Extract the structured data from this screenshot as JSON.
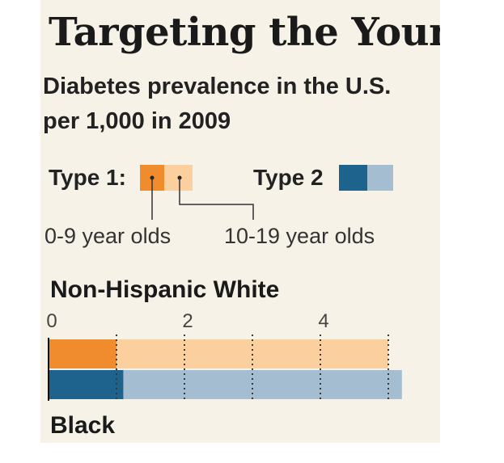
{
  "title": "Targeting the Youn",
  "subtitle_line1": "Diabetes prevalence in the U.S.",
  "subtitle_line2": "per 1,000 in 2009",
  "legend": {
    "type1_label": "Type 1:",
    "type2_label": "Type 2",
    "age_young": "0-9 year olds",
    "age_older": "10-19 year olds"
  },
  "colors": {
    "type1_young": "#f08c2e",
    "type1_older": "#fbcf9e",
    "type2_young": "#1e628e",
    "type2_older": "#a5bdd0",
    "background": "#f7f2e7"
  },
  "chart_data": {
    "type": "bar",
    "orientation": "horizontal",
    "stacked": false,
    "xlim": [
      0,
      5
    ],
    "ticks": [
      0,
      2,
      4
    ],
    "gridlines": [
      1,
      2,
      3,
      4,
      5
    ],
    "groups": [
      {
        "name": "Non-Hispanic White",
        "bars": [
          {
            "type": "Type 1",
            "values": [
              {
                "age": "0-9 year olds",
                "value": 1.0
              },
              {
                "age": "10-19 year olds",
                "value": 5.0
              }
            ]
          },
          {
            "type": "Type 2",
            "values": [
              {
                "age": "0-9 year olds",
                "value": 1.1
              },
              {
                "age": "10-19 year olds",
                "value": 5.2
              }
            ]
          }
        ]
      },
      {
        "name": "Black",
        "bars": []
      }
    ]
  }
}
